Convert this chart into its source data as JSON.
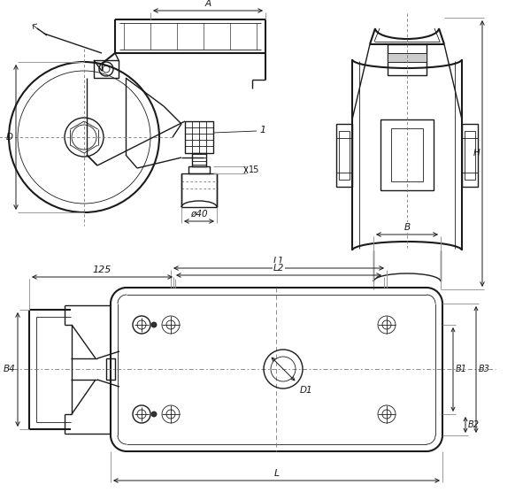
{
  "bg_color": "#ffffff",
  "line_color": "#1a1a1a",
  "figsize": [
    5.82,
    5.65
  ],
  "dpi": 100,
  "labels": {
    "A": "A",
    "D": "D",
    "H": "H",
    "B": "B",
    "dim15": "15",
    "dim40": "ø40",
    "dim125": "125",
    "L1": "L1",
    "L2": "L2",
    "L": "L",
    "B1": "B1",
    "B2": "B2",
    "B3": "B3",
    "B4": "B4",
    "D1": "D1",
    "label1": "1"
  }
}
